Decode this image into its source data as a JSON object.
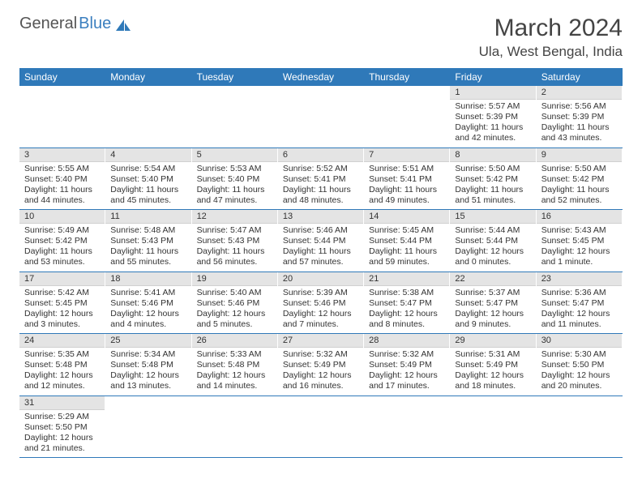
{
  "brand": {
    "name_a": "General",
    "name_b": "Blue",
    "sail_color": "#2f79b9"
  },
  "title": "March 2024",
  "location": "Ula, West Bengal, India",
  "colors": {
    "header_bg": "#2f79b9",
    "header_fg": "#ffffff",
    "daybar_bg": "#e4e4e4",
    "row_border": "#2f79b9",
    "text": "#333333",
    "background": "#ffffff"
  },
  "day_names": [
    "Sunday",
    "Monday",
    "Tuesday",
    "Wednesday",
    "Thursday",
    "Friday",
    "Saturday"
  ],
  "weeks": [
    [
      {
        "n": "",
        "empty": true
      },
      {
        "n": "",
        "empty": true
      },
      {
        "n": "",
        "empty": true
      },
      {
        "n": "",
        "empty": true
      },
      {
        "n": "",
        "empty": true
      },
      {
        "n": "1",
        "sunrise": "5:57 AM",
        "sunset": "5:39 PM",
        "daylight": "11 hours and 42 minutes."
      },
      {
        "n": "2",
        "sunrise": "5:56 AM",
        "sunset": "5:39 PM",
        "daylight": "11 hours and 43 minutes."
      }
    ],
    [
      {
        "n": "3",
        "sunrise": "5:55 AM",
        "sunset": "5:40 PM",
        "daylight": "11 hours and 44 minutes."
      },
      {
        "n": "4",
        "sunrise": "5:54 AM",
        "sunset": "5:40 PM",
        "daylight": "11 hours and 45 minutes."
      },
      {
        "n": "5",
        "sunrise": "5:53 AM",
        "sunset": "5:40 PM",
        "daylight": "11 hours and 47 minutes."
      },
      {
        "n": "6",
        "sunrise": "5:52 AM",
        "sunset": "5:41 PM",
        "daylight": "11 hours and 48 minutes."
      },
      {
        "n": "7",
        "sunrise": "5:51 AM",
        "sunset": "5:41 PM",
        "daylight": "11 hours and 49 minutes."
      },
      {
        "n": "8",
        "sunrise": "5:50 AM",
        "sunset": "5:42 PM",
        "daylight": "11 hours and 51 minutes."
      },
      {
        "n": "9",
        "sunrise": "5:50 AM",
        "sunset": "5:42 PM",
        "daylight": "11 hours and 52 minutes."
      }
    ],
    [
      {
        "n": "10",
        "sunrise": "5:49 AM",
        "sunset": "5:42 PM",
        "daylight": "11 hours and 53 minutes."
      },
      {
        "n": "11",
        "sunrise": "5:48 AM",
        "sunset": "5:43 PM",
        "daylight": "11 hours and 55 minutes."
      },
      {
        "n": "12",
        "sunrise": "5:47 AM",
        "sunset": "5:43 PM",
        "daylight": "11 hours and 56 minutes."
      },
      {
        "n": "13",
        "sunrise": "5:46 AM",
        "sunset": "5:44 PM",
        "daylight": "11 hours and 57 minutes."
      },
      {
        "n": "14",
        "sunrise": "5:45 AM",
        "sunset": "5:44 PM",
        "daylight": "11 hours and 59 minutes."
      },
      {
        "n": "15",
        "sunrise": "5:44 AM",
        "sunset": "5:44 PM",
        "daylight": "12 hours and 0 minutes."
      },
      {
        "n": "16",
        "sunrise": "5:43 AM",
        "sunset": "5:45 PM",
        "daylight": "12 hours and 1 minute."
      }
    ],
    [
      {
        "n": "17",
        "sunrise": "5:42 AM",
        "sunset": "5:45 PM",
        "daylight": "12 hours and 3 minutes."
      },
      {
        "n": "18",
        "sunrise": "5:41 AM",
        "sunset": "5:46 PM",
        "daylight": "12 hours and 4 minutes."
      },
      {
        "n": "19",
        "sunrise": "5:40 AM",
        "sunset": "5:46 PM",
        "daylight": "12 hours and 5 minutes."
      },
      {
        "n": "20",
        "sunrise": "5:39 AM",
        "sunset": "5:46 PM",
        "daylight": "12 hours and 7 minutes."
      },
      {
        "n": "21",
        "sunrise": "5:38 AM",
        "sunset": "5:47 PM",
        "daylight": "12 hours and 8 minutes."
      },
      {
        "n": "22",
        "sunrise": "5:37 AM",
        "sunset": "5:47 PM",
        "daylight": "12 hours and 9 minutes."
      },
      {
        "n": "23",
        "sunrise": "5:36 AM",
        "sunset": "5:47 PM",
        "daylight": "12 hours and 11 minutes."
      }
    ],
    [
      {
        "n": "24",
        "sunrise": "5:35 AM",
        "sunset": "5:48 PM",
        "daylight": "12 hours and 12 minutes."
      },
      {
        "n": "25",
        "sunrise": "5:34 AM",
        "sunset": "5:48 PM",
        "daylight": "12 hours and 13 minutes."
      },
      {
        "n": "26",
        "sunrise": "5:33 AM",
        "sunset": "5:48 PM",
        "daylight": "12 hours and 14 minutes."
      },
      {
        "n": "27",
        "sunrise": "5:32 AM",
        "sunset": "5:49 PM",
        "daylight": "12 hours and 16 minutes."
      },
      {
        "n": "28",
        "sunrise": "5:32 AM",
        "sunset": "5:49 PM",
        "daylight": "12 hours and 17 minutes."
      },
      {
        "n": "29",
        "sunrise": "5:31 AM",
        "sunset": "5:49 PM",
        "daylight": "12 hours and 18 minutes."
      },
      {
        "n": "30",
        "sunrise": "5:30 AM",
        "sunset": "5:50 PM",
        "daylight": "12 hours and 20 minutes."
      }
    ],
    [
      {
        "n": "31",
        "sunrise": "5:29 AM",
        "sunset": "5:50 PM",
        "daylight": "12 hours and 21 minutes."
      },
      {
        "n": "",
        "empty": true
      },
      {
        "n": "",
        "empty": true
      },
      {
        "n": "",
        "empty": true
      },
      {
        "n": "",
        "empty": true
      },
      {
        "n": "",
        "empty": true
      },
      {
        "n": "",
        "empty": true
      }
    ]
  ],
  "labels": {
    "sunrise": "Sunrise:",
    "sunset": "Sunset:",
    "daylight": "Daylight:"
  }
}
